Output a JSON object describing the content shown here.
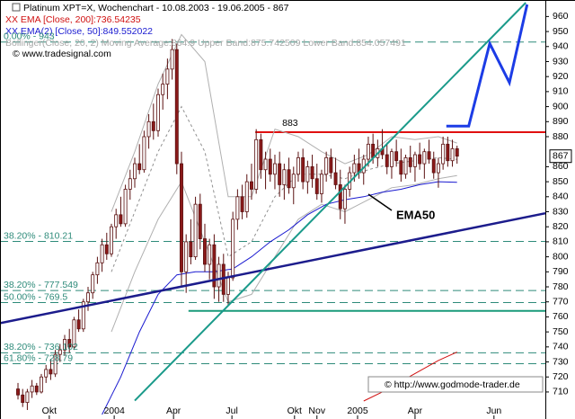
{
  "chart_data": {
    "type": "candlestick",
    "title": "Platinum XPT=X, Wochenchart - 10.08.2003 - 19.06.2005 - 867",
    "legend": [
      {
        "text": "XX EMA [Close, 200]:736.54235",
        "color": "#d01010"
      },
      {
        "text": "XX EMA(2) [Close, 50]:849.552022",
        "color": "#1a1ad0"
      },
      {
        "text": "Bollinger(Close, 20, 2) Moving Average:864.9 Upper Band:875.742509 Lower Band:854.057491",
        "color": "#a8a8a8"
      }
    ],
    "source": "© www.tradesignal.com",
    "watermark": "© http://www.godmode-trader.de",
    "xlim": [
      -3.85,
      112.9
    ],
    "ylim": [
      692,
      971
    ],
    "yticks": [
      960,
      950,
      940,
      930,
      920,
      910,
      900,
      890,
      880,
      860,
      850,
      840,
      830,
      820,
      810,
      800,
      790,
      780,
      770,
      760,
      750,
      740,
      730,
      720,
      710
    ],
    "last_price": 867,
    "xticks": [
      {
        "value": 6.7,
        "label": "Okt"
      },
      {
        "value": 20.6,
        "label": "2004"
      },
      {
        "value": 33.3,
        "label": "Apr"
      },
      {
        "value": 45.8,
        "label": "Jul"
      },
      {
        "value": 59.2,
        "label": "Okt"
      },
      {
        "value": 64,
        "label": "Nov"
      },
      {
        "value": 72.7,
        "label": "2005"
      },
      {
        "value": 85,
        "label": "Apr"
      },
      {
        "value": 101.9,
        "label": "Jun"
      }
    ],
    "up_color": "#ffffff",
    "down_color": "#8b1a1a",
    "ohlc": [
      [
        712,
        716,
        705,
        708
      ],
      [
        708,
        712,
        700,
        703
      ],
      [
        703,
        712,
        698,
        710
      ],
      [
        710,
        718,
        706,
        714
      ],
      [
        714,
        716,
        708,
        710
      ],
      [
        710,
        722,
        709,
        720
      ],
      [
        720,
        728,
        716,
        725
      ],
      [
        725,
        732,
        718,
        722
      ],
      [
        722,
        738,
        720,
        735
      ],
      [
        735,
        742,
        730,
        738
      ],
      [
        738,
        748,
        734,
        745
      ],
      [
        745,
        752,
        736,
        740
      ],
      [
        740,
        760,
        738,
        758
      ],
      [
        758,
        765,
        750,
        752
      ],
      [
        752,
        772,
        750,
        770
      ],
      [
        770,
        780,
        764,
        776
      ],
      [
        776,
        790,
        772,
        788
      ],
      [
        788,
        800,
        782,
        796
      ],
      [
        796,
        812,
        790,
        808
      ],
      [
        808,
        816,
        798,
        802
      ],
      [
        802,
        822,
        800,
        820
      ],
      [
        820,
        832,
        812,
        828
      ],
      [
        828,
        840,
        820,
        822
      ],
      [
        822,
        848,
        820,
        845
      ],
      [
        845,
        858,
        838,
        852
      ],
      [
        852,
        866,
        846,
        862
      ],
      [
        862,
        875,
        855,
        858
      ],
      [
        858,
        884,
        856,
        880
      ],
      [
        880,
        895,
        872,
        890
      ],
      [
        890,
        902,
        878,
        884
      ],
      [
        884,
        912,
        880,
        908
      ],
      [
        908,
        922,
        898,
        915
      ],
      [
        915,
        932,
        905,
        925
      ],
      [
        925,
        945,
        918,
        938
      ],
      [
        938,
        942,
        855,
        862
      ],
      [
        862,
        870,
        780,
        790
      ],
      [
        790,
        815,
        776,
        810
      ],
      [
        810,
        825,
        795,
        800
      ],
      [
        800,
        840,
        798,
        835
      ],
      [
        835,
        842,
        805,
        812
      ],
      [
        812,
        822,
        790,
        795
      ],
      [
        795,
        812,
        785,
        808
      ],
      [
        808,
        815,
        772,
        780
      ],
      [
        780,
        800,
        770,
        795
      ],
      [
        795,
        802,
        770,
        775
      ],
      [
        775,
        790,
        768,
        786
      ],
      [
        786,
        830,
        784,
        825
      ],
      [
        825,
        845,
        818,
        840
      ],
      [
        840,
        848,
        825,
        830
      ],
      [
        830,
        855,
        826,
        850
      ],
      [
        850,
        862,
        838,
        845
      ],
      [
        845,
        885,
        842,
        878
      ],
      [
        878,
        882,
        852,
        858
      ],
      [
        858,
        870,
        845,
        865
      ],
      [
        865,
        872,
        850,
        855
      ],
      [
        855,
        868,
        845,
        862
      ],
      [
        862,
        870,
        840,
        848
      ],
      [
        848,
        862,
        838,
        858
      ],
      [
        858,
        866,
        842,
        846
      ],
      [
        846,
        860,
        835,
        855
      ],
      [
        855,
        870,
        850,
        866
      ],
      [
        866,
        872,
        845,
        850
      ],
      [
        850,
        864,
        842,
        860
      ],
      [
        860,
        868,
        846,
        852
      ],
      [
        852,
        862,
        838,
        842
      ],
      [
        842,
        858,
        836,
        855
      ],
      [
        855,
        870,
        850,
        866
      ],
      [
        866,
        872,
        852,
        856
      ],
      [
        856,
        866,
        845,
        848
      ],
      [
        848,
        858,
        825,
        832
      ],
      [
        832,
        848,
        822,
        845
      ],
      [
        845,
        860,
        840,
        856
      ],
      [
        856,
        868,
        850,
        862
      ],
      [
        862,
        872,
        852,
        856
      ],
      [
        856,
        868,
        848,
        865
      ],
      [
        865,
        880,
        860,
        875
      ],
      [
        875,
        882,
        862,
        866
      ],
      [
        866,
        878,
        860,
        872
      ],
      [
        872,
        885,
        865,
        868
      ],
      [
        868,
        876,
        855,
        860
      ],
      [
        860,
        872,
        852,
        870
      ],
      [
        870,
        878,
        860,
        864
      ],
      [
        864,
        872,
        850,
        855
      ],
      [
        855,
        868,
        852,
        866
      ],
      [
        866,
        874,
        856,
        860
      ],
      [
        860,
        870,
        850,
        868
      ],
      [
        868,
        876,
        858,
        862
      ],
      [
        862,
        872,
        852,
        870
      ],
      [
        870,
        878,
        862,
        865
      ],
      [
        865,
        870,
        852,
        856
      ],
      [
        856,
        866,
        846,
        862
      ],
      [
        862,
        880,
        858,
        875
      ],
      [
        875,
        880,
        860,
        864
      ],
      [
        864,
        878,
        860,
        872
      ],
      [
        872,
        874,
        862,
        867
      ]
    ],
    "lines": [
      {
        "name": "Bollinger Upper",
        "color": "#b0b0b0",
        "dash": false,
        "x": [
          20,
          25,
          30,
          35,
          40,
          45,
          50,
          55,
          60,
          65,
          70,
          75,
          80,
          85,
          90,
          94
        ],
        "values": [
          830,
          870,
          915,
          948,
          930,
          840,
          840,
          885,
          880,
          870,
          862,
          868,
          880,
          878,
          880,
          875.742509
        ]
      },
      {
        "name": "Bollinger MA",
        "color": "#909090",
        "dash": true,
        "x": [
          20,
          25,
          30,
          35,
          40,
          45,
          50,
          55,
          60,
          65,
          70,
          75,
          80,
          85,
          90,
          94
        ],
        "values": [
          790,
          830,
          870,
          900,
          870,
          800,
          810,
          840,
          855,
          855,
          852,
          858,
          862,
          864,
          866,
          864.9
        ]
      },
      {
        "name": "Bollinger Lower",
        "color": "#b0b0b0",
        "dash": false,
        "x": [
          20,
          25,
          30,
          35,
          40,
          45,
          50,
          55,
          60,
          65,
          70,
          75,
          80,
          85,
          90,
          94
        ],
        "values": [
          750,
          790,
          825,
          850,
          810,
          770,
          775,
          800,
          825,
          835,
          830,
          838,
          846,
          848,
          852,
          854.057491
        ]
      },
      {
        "name": "EMA50",
        "color": "#1a1ad0",
        "dash": false,
        "x": [
          18,
          22,
          26,
          30,
          34,
          38,
          42,
          46,
          50,
          54,
          58,
          62,
          66,
          70,
          74,
          78,
          82,
          86,
          90,
          94
        ],
        "values": [
          695,
          720,
          750,
          775,
          788,
          790,
          790,
          792,
          800,
          810,
          818,
          828,
          835,
          838,
          840,
          843,
          845,
          848,
          850,
          849.552022
        ]
      },
      {
        "name": "EMA200",
        "color": "#d01010",
        "dash": false,
        "x": [
          74,
          78,
          82,
          86,
          90,
          94
        ],
        "values": [
          704,
          710,
          717,
          724,
          731,
          736.54235
        ]
      }
    ],
    "fib_levels": [
      {
        "value": 943,
        "label": "0.00% - 943"
      },
      {
        "value": 810.21,
        "label": "38.20% - 810.21"
      },
      {
        "value": 777.549,
        "label": "38.20% - 777.549"
      },
      {
        "value": 769.5,
        "label": "50.00% - 769.5"
      },
      {
        "value": 736.102,
        "label": "38.20% - 736.102"
      },
      {
        "value": 728.79,
        "label": "61.80% - 728.79"
      }
    ],
    "fib_color": "#2e8b7a",
    "resistance": {
      "value": 883,
      "label": "883",
      "from": 50.8,
      "color": "#e01010"
    },
    "support": {
      "value": 764,
      "from": 36.5,
      "color": "#1a9a7a"
    },
    "trendlines": [
      {
        "x": [
          -3.85,
          112.9
        ],
        "values": [
          755.8,
          829
        ],
        "color": "#1c1c8c",
        "width": 2.5
      },
      {
        "x": [
          25,
          108.7
        ],
        "values": [
          704.2,
          969.2
        ],
        "color": "#1a9a8a",
        "width": 2
      }
    ],
    "forecast": {
      "x": [
        91.7,
        96.5,
        101,
        105.2,
        109
      ],
      "values": [
        887,
        887,
        942,
        916,
        968
      ],
      "color": "#1c3ce6"
    },
    "annotation": "EMA50"
  }
}
